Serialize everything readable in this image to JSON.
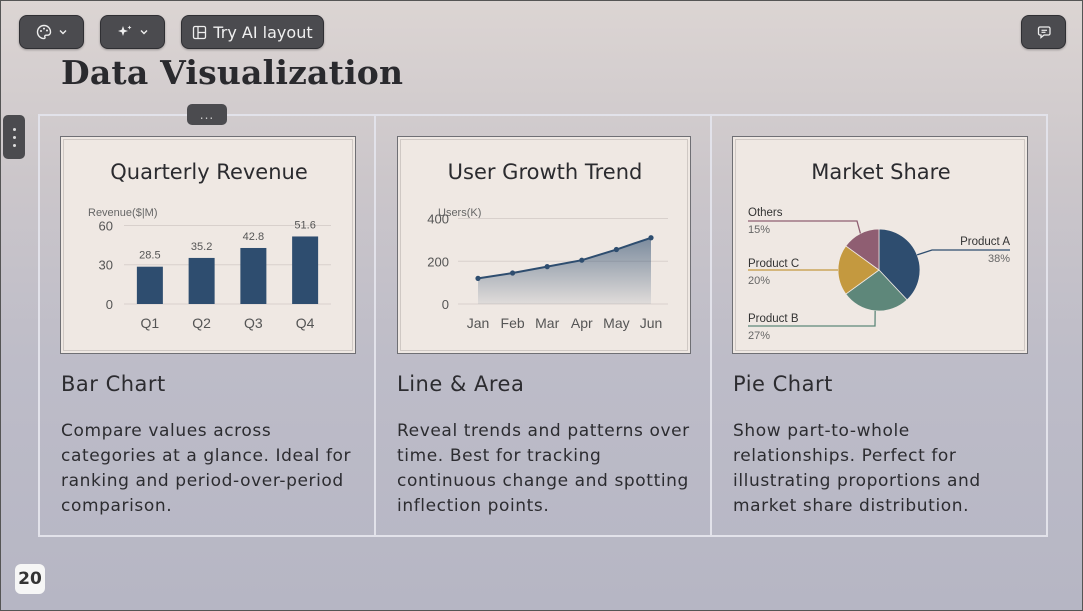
{
  "toolbar": {
    "theme_button": {
      "icon": "palette-icon"
    },
    "ai_button": {
      "icon": "sparkle-icon"
    },
    "try_ai_label": "Try AI layout",
    "comment_button": {
      "icon": "comment-icon"
    }
  },
  "page_title": "Data Visualization",
  "drag_tab_label": "...",
  "cards": [
    {
      "title": "Bar Chart",
      "description": "Compare values across categories at a glance. Ideal for ranking and period-over-period comparison."
    },
    {
      "title": "Line & Area",
      "description": "Reveal trends and patterns over time. Best for tracking continuous change and spotting inflection points."
    },
    {
      "title": "Pie Chart",
      "description": "Show part-to-whole relationships. Perfect for illustrating proportions and market share distribution."
    }
  ],
  "page_number": "20",
  "colors": {
    "navy": "#2e4d6f",
    "sage": "#5e877a",
    "mustard": "#c4993f",
    "mauve": "#8f5e72",
    "axis_text": "#555555"
  },
  "chart_data": [
    {
      "type": "bar",
      "title": "Quarterly Revenue",
      "ylabel": "Revenue($|M)",
      "categories": [
        "Q1",
        "Q2",
        "Q3",
        "Q4"
      ],
      "values": [
        28.5,
        35.2,
        42.8,
        51.6
      ],
      "value_labels": [
        "28.5",
        "35.2",
        "42.8",
        "51.6"
      ],
      "yticks": [
        "0",
        "30",
        "60"
      ],
      "ylim": [
        0,
        68
      ],
      "grid": true
    },
    {
      "type": "area",
      "title": "User Growth Trend",
      "ylabel": "Users(K)",
      "categories": [
        "Jan",
        "Feb",
        "Mar",
        "Apr",
        "May",
        "Jun"
      ],
      "values": [
        120,
        145,
        175,
        205,
        255,
        310
      ],
      "yticks": [
        "0",
        "200",
        "400"
      ],
      "ylim": [
        0,
        440
      ],
      "grid": true
    },
    {
      "type": "pie",
      "title": "Market Share",
      "slices": [
        {
          "label": "Product A",
          "value": 38,
          "pct": "38%"
        },
        {
          "label": "Product B",
          "value": 27,
          "pct": "27%"
        },
        {
          "label": "Product C",
          "value": 20,
          "pct": "20%"
        },
        {
          "label": "Others",
          "value": 15,
          "pct": "15%"
        }
      ]
    }
  ]
}
